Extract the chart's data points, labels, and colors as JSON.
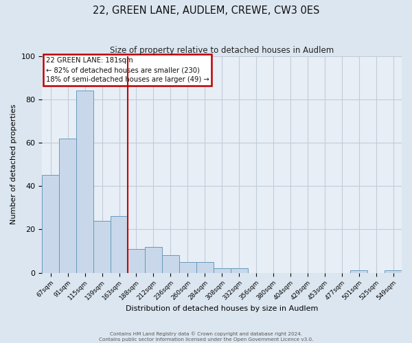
{
  "title": "22, GREEN LANE, AUDLEM, CREWE, CW3 0ES",
  "subtitle": "Size of property relative to detached houses in Audlem",
  "xlabel": "Distribution of detached houses by size in Audlem",
  "ylabel": "Number of detached properties",
  "categories": [
    "67sqm",
    "91sqm",
    "115sqm",
    "139sqm",
    "163sqm",
    "188sqm",
    "212sqm",
    "236sqm",
    "260sqm",
    "284sqm",
    "308sqm",
    "332sqm",
    "356sqm",
    "380sqm",
    "404sqm",
    "429sqm",
    "453sqm",
    "477sqm",
    "501sqm",
    "525sqm",
    "549sqm"
  ],
  "values": [
    45,
    62,
    84,
    24,
    26,
    11,
    12,
    8,
    5,
    5,
    2,
    2,
    0,
    0,
    0,
    0,
    0,
    0,
    1,
    0,
    1
  ],
  "bar_color": "#c8d8ea",
  "bar_edge_color": "#6699bb",
  "vline_x_index": 5,
  "annotation_title": "22 GREEN LANE: 181sqm",
  "annotation_line1": "← 82% of detached houses are smaller (230)",
  "annotation_line2": "18% of semi-detached houses are larger (49) →",
  "annotation_box_color": "#ffffff",
  "annotation_box_edge": "#bb0000",
  "ylim": [
    0,
    100
  ],
  "yticks": [
    0,
    20,
    40,
    60,
    80,
    100
  ],
  "footer1": "Contains HM Land Registry data © Crown copyright and database right 2024.",
  "footer2": "Contains public sector information licensed under the Open Government Licence v3.0.",
  "background_color": "#dce6f0",
  "plot_background": "#e8eef6",
  "grid_color": "#c0ccd8",
  "title_fontsize": 10.5,
  "subtitle_fontsize": 8.5
}
